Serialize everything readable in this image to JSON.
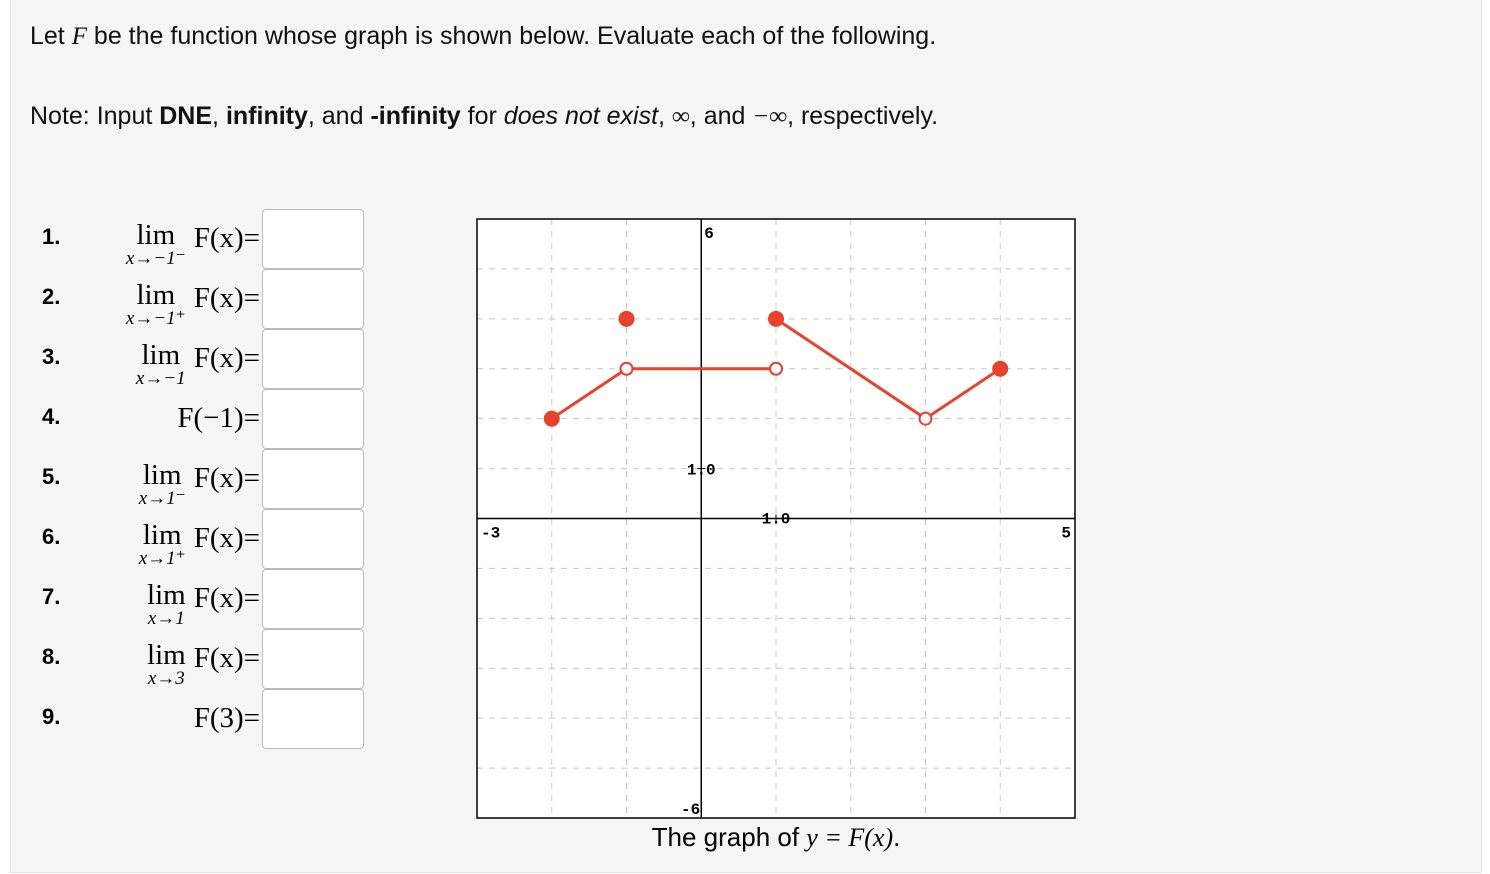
{
  "intro": {
    "before": "Let ",
    "var": "F",
    "after": " be the function whose graph is shown below. Evaluate each of the following."
  },
  "note": [
    "Note: Input ",
    "DNE",
    ", ",
    "infinity",
    ", and ",
    "-infinity",
    " for ",
    "does not exist",
    ", ",
    "∞",
    ", and ",
    "−∞",
    ", respectively."
  ],
  "questions": [
    {
      "number": "1.",
      "limit": "lim",
      "approach": "x→−1⁻",
      "function": "F(x)="
    },
    {
      "number": "2.",
      "limit": "lim",
      "approach": "x→−1⁺",
      "function": "F(x)="
    },
    {
      "number": "3.",
      "limit": "lim",
      "approach": "x→−1",
      "function": "F(x)="
    },
    {
      "number": "4.",
      "function": "F(−1)="
    },
    {
      "number": "5.",
      "limit": "lim",
      "approach": "x→1⁻",
      "function": "F(x)="
    },
    {
      "number": "6.",
      "limit": "lim",
      "approach": "x→1⁺",
      "function": "F(x)="
    },
    {
      "number": "7.",
      "limit": "lim",
      "approach": "x→1",
      "function": "F(x)="
    },
    {
      "number": "8.",
      "limit": "lim",
      "approach": "x→3",
      "function": "F(x)="
    },
    {
      "number": "9.",
      "function": "F(3)="
    }
  ],
  "graph": {
    "type": "line",
    "xlim": [
      -3,
      5
    ],
    "ylim": [
      -6,
      6
    ],
    "grid_x": [
      -2,
      -1,
      0,
      1,
      2,
      3,
      4
    ],
    "grid_y": [
      -5,
      -4,
      -3,
      -2,
      -1,
      0,
      1,
      2,
      3,
      4,
      5
    ],
    "xticks": [
      {
        "value": 1,
        "label": "1.0"
      }
    ],
    "yticks": [
      {
        "value": 1,
        "label": "1.0"
      }
    ],
    "color": "#e8412c",
    "segments": [
      {
        "x": [
          -2,
          -1
        ],
        "y": [
          2,
          3
        ]
      },
      {
        "x": [
          -1,
          1
        ],
        "y": [
          3,
          3
        ]
      },
      {
        "x": [
          1,
          3
        ],
        "y": [
          4,
          2
        ]
      },
      {
        "x": [
          3,
          4
        ],
        "y": [
          2,
          3
        ]
      }
    ],
    "points": {
      "x": [
        -2,
        -1,
        -1,
        1,
        1,
        3,
        4
      ],
      "y": [
        2,
        3,
        4,
        3,
        4,
        2,
        3
      ],
      "filled": [
        true,
        false,
        true,
        false,
        true,
        false,
        true
      ]
    },
    "caption": {
      "before": "The graph of ",
      "math": "y = F(x)",
      "after": "."
    }
  }
}
